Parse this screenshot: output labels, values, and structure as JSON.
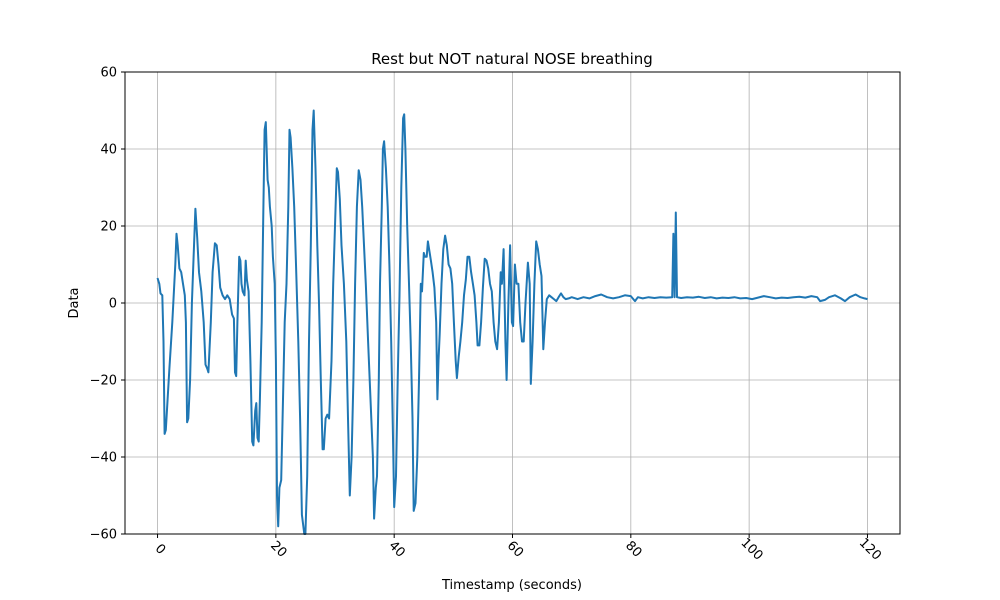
{
  "chart_data": {
    "type": "line",
    "title": "Rest but NOT natural NOSE breathing",
    "xlabel": "Timestamp (seconds)",
    "ylabel": "Data",
    "xlim": [
      -5.5,
      125.5
    ],
    "ylim": [
      -60,
      60
    ],
    "xticks": [
      0,
      20,
      40,
      60,
      80,
      100,
      120
    ],
    "yticks": [
      -60,
      -40,
      -20,
      0,
      20,
      40,
      60
    ],
    "xtick_rotation": 45,
    "grid": true,
    "series": [
      {
        "color": "#1f77b4",
        "points": [
          [
            0,
            6.5
          ],
          [
            0.3,
            5
          ],
          [
            0.5,
            2.5
          ],
          [
            0.8,
            2
          ],
          [
            1.0,
            -10
          ],
          [
            1.2,
            -34
          ],
          [
            1.4,
            -33
          ],
          [
            1.7,
            -25
          ],
          [
            2.0,
            -17
          ],
          [
            2.5,
            -5
          ],
          [
            3.0,
            10
          ],
          [
            3.2,
            18
          ],
          [
            3.4,
            15
          ],
          [
            3.7,
            9
          ],
          [
            4.0,
            8
          ],
          [
            4.3,
            5
          ],
          [
            4.6,
            2
          ],
          [
            4.8,
            -5
          ],
          [
            5.0,
            -31
          ],
          [
            5.2,
            -30
          ],
          [
            5.5,
            -20
          ],
          [
            5.8,
            0
          ],
          [
            6.1,
            12
          ],
          [
            6.4,
            24.5
          ],
          [
            6.7,
            17
          ],
          [
            7.0,
            8
          ],
          [
            7.4,
            3
          ],
          [
            7.8,
            -5
          ],
          [
            8.1,
            -16
          ],
          [
            8.4,
            -17
          ],
          [
            8.6,
            -18
          ],
          [
            9.0,
            -5
          ],
          [
            9.3,
            8
          ],
          [
            9.7,
            15.5
          ],
          [
            10.0,
            15
          ],
          [
            10.3,
            10
          ],
          [
            10.6,
            4
          ],
          [
            11.0,
            2
          ],
          [
            11.4,
            1
          ],
          [
            11.8,
            2
          ],
          [
            12.2,
            1
          ],
          [
            12.6,
            -3
          ],
          [
            12.9,
            -4
          ],
          [
            13.1,
            -18
          ],
          [
            13.3,
            -19
          ],
          [
            13.5,
            -5
          ],
          [
            13.8,
            12
          ],
          [
            14.0,
            11
          ],
          [
            14.2,
            5
          ],
          [
            14.4,
            3
          ],
          [
            14.7,
            2
          ],
          [
            14.9,
            11
          ],
          [
            15.1,
            6
          ],
          [
            15.4,
            3
          ],
          [
            15.7,
            -15
          ],
          [
            16.0,
            -36
          ],
          [
            16.2,
            -37
          ],
          [
            16.5,
            -28
          ],
          [
            16.7,
            -26
          ],
          [
            16.9,
            -35
          ],
          [
            17.1,
            -36
          ],
          [
            17.3,
            -25
          ],
          [
            17.6,
            -5
          ],
          [
            17.9,
            25
          ],
          [
            18.1,
            45
          ],
          [
            18.3,
            47
          ],
          [
            18.6,
            32
          ],
          [
            18.8,
            30
          ],
          [
            19.0,
            25
          ],
          [
            19.3,
            20
          ],
          [
            19.5,
            12
          ],
          [
            19.8,
            5
          ],
          [
            20.0,
            -15
          ],
          [
            20.2,
            -50
          ],
          [
            20.4,
            -58
          ],
          [
            20.6,
            -48
          ],
          [
            20.9,
            -46
          ],
          [
            21.2,
            -25
          ],
          [
            21.5,
            -5
          ],
          [
            21.8,
            5
          ],
          [
            22.1,
            25
          ],
          [
            22.3,
            45
          ],
          [
            22.5,
            43
          ],
          [
            22.8,
            35
          ],
          [
            23.1,
            25
          ],
          [
            23.4,
            10
          ],
          [
            23.8,
            -10
          ],
          [
            24.1,
            -30
          ],
          [
            24.4,
            -55
          ],
          [
            24.8,
            -60
          ],
          [
            25.0,
            -60
          ],
          [
            25.3,
            -45
          ],
          [
            25.6,
            -10
          ],
          [
            25.9,
            15
          ],
          [
            26.2,
            45
          ],
          [
            26.4,
            50
          ],
          [
            26.7,
            35
          ],
          [
            27.0,
            15
          ],
          [
            27.3,
            0
          ],
          [
            27.6,
            -20
          ],
          [
            27.9,
            -38
          ],
          [
            28.1,
            -38
          ],
          [
            28.4,
            -30
          ],
          [
            28.7,
            -29
          ],
          [
            29.0,
            -30
          ],
          [
            29.4,
            -15
          ],
          [
            29.7,
            5
          ],
          [
            30.0,
            20
          ],
          [
            30.3,
            35
          ],
          [
            30.5,
            34
          ],
          [
            30.8,
            27
          ],
          [
            31.1,
            15
          ],
          [
            31.5,
            5
          ],
          [
            31.9,
            -10
          ],
          [
            32.2,
            -30
          ],
          [
            32.5,
            -50
          ],
          [
            32.8,
            -40
          ],
          [
            33.1,
            -20
          ],
          [
            33.4,
            5
          ],
          [
            33.7,
            25
          ],
          [
            34.0,
            34.5
          ],
          [
            34.3,
            32
          ],
          [
            34.6,
            25
          ],
          [
            34.9,
            15
          ],
          [
            35.2,
            5
          ],
          [
            35.6,
            -10
          ],
          [
            36.0,
            -25
          ],
          [
            36.4,
            -40
          ],
          [
            36.6,
            -56
          ],
          [
            36.9,
            -48
          ],
          [
            37.1,
            -45
          ],
          [
            37.4,
            -20
          ],
          [
            37.6,
            5
          ],
          [
            37.9,
            25
          ],
          [
            38.1,
            40
          ],
          [
            38.3,
            42
          ],
          [
            38.6,
            35
          ],
          [
            38.9,
            25
          ],
          [
            39.2,
            10
          ],
          [
            39.5,
            -10
          ],
          [
            39.8,
            -35
          ],
          [
            40.0,
            -53
          ],
          [
            40.3,
            -45
          ],
          [
            40.6,
            -20
          ],
          [
            40.9,
            2
          ],
          [
            41.2,
            30
          ],
          [
            41.5,
            48
          ],
          [
            41.7,
            49
          ],
          [
            41.9,
            40
          ],
          [
            42.2,
            20
          ],
          [
            42.5,
            5
          ],
          [
            42.8,
            -10
          ],
          [
            43.1,
            -30
          ],
          [
            43.3,
            -54
          ],
          [
            43.6,
            -52
          ],
          [
            43.9,
            -40
          ],
          [
            44.2,
            -20
          ],
          [
            44.5,
            5
          ],
          [
            44.7,
            3
          ],
          [
            45.0,
            13
          ],
          [
            45.2,
            12
          ],
          [
            45.5,
            12
          ],
          [
            45.7,
            16
          ],
          [
            45.9,
            14
          ],
          [
            46.2,
            11
          ],
          [
            46.5,
            8
          ],
          [
            46.8,
            4
          ],
          [
            47.1,
            -5
          ],
          [
            47.3,
            -25
          ],
          [
            47.5,
            -15
          ],
          [
            47.7,
            -8
          ],
          [
            48.0,
            5
          ],
          [
            48.3,
            14
          ],
          [
            48.6,
            17.5
          ],
          [
            48.9,
            15
          ],
          [
            49.2,
            10
          ],
          [
            49.5,
            9
          ],
          [
            49.8,
            5
          ],
          [
            50.1,
            -5
          ],
          [
            50.4,
            -15
          ],
          [
            50.6,
            -19.5
          ],
          [
            50.9,
            -14
          ],
          [
            51.2,
            -10
          ],
          [
            51.5,
            -5
          ],
          [
            51.8,
            2
          ],
          [
            52.1,
            6
          ],
          [
            52.4,
            12
          ],
          [
            52.7,
            12
          ],
          [
            53.0,
            8
          ],
          [
            53.3,
            5
          ],
          [
            53.6,
            2
          ],
          [
            53.9,
            -5
          ],
          [
            54.1,
            -11
          ],
          [
            54.4,
            -11
          ],
          [
            54.7,
            -5
          ],
          [
            55.0,
            4
          ],
          [
            55.3,
            11.5
          ],
          [
            55.6,
            11
          ],
          [
            55.9,
            9
          ],
          [
            56.2,
            5
          ],
          [
            56.5,
            3
          ],
          [
            56.8,
            -5
          ],
          [
            57.1,
            -10
          ],
          [
            57.4,
            -12
          ],
          [
            57.7,
            -5
          ],
          [
            58.0,
            8
          ],
          [
            58.2,
            5
          ],
          [
            58.5,
            14
          ],
          [
            58.8,
            -10
          ],
          [
            59.0,
            -20
          ],
          [
            59.3,
            0
          ],
          [
            59.6,
            15
          ],
          [
            59.9,
            -5
          ],
          [
            60.1,
            -6
          ],
          [
            60.4,
            10
          ],
          [
            60.7,
            5
          ],
          [
            61.0,
            5
          ],
          [
            61.3,
            -5
          ],
          [
            61.6,
            -10
          ],
          [
            61.9,
            -10
          ],
          [
            62.2,
            0
          ],
          [
            62.6,
            10.5
          ],
          [
            62.9,
            5
          ],
          [
            63.1,
            -21
          ],
          [
            63.4,
            -10
          ],
          [
            63.7,
            5
          ],
          [
            64.0,
            16
          ],
          [
            64.3,
            14
          ],
          [
            64.6,
            10
          ],
          [
            64.9,
            7
          ],
          [
            65.2,
            -12
          ],
          [
            65.5,
            -5
          ],
          [
            65.8,
            1
          ],
          [
            66.2,
            2
          ],
          [
            66.6,
            1.5
          ],
          [
            67.0,
            1
          ],
          [
            67.4,
            0.5
          ],
          [
            67.8,
            1.5
          ],
          [
            68.2,
            2.5
          ],
          [
            68.6,
            1.5
          ],
          [
            69.0,
            1
          ],
          [
            69.5,
            1.2
          ],
          [
            70,
            1.5
          ],
          [
            71,
            1
          ],
          [
            72,
            1.5
          ],
          [
            73,
            1.2
          ],
          [
            74,
            1.8
          ],
          [
            75,
            2.2
          ],
          [
            76,
            1.5
          ],
          [
            77,
            1.2
          ],
          [
            78,
            1.5
          ],
          [
            79,
            2
          ],
          [
            80,
            1.8
          ],
          [
            80.7,
            0.5
          ],
          [
            81.2,
            1.5
          ],
          [
            82,
            1.2
          ],
          [
            83,
            1.5
          ],
          [
            84,
            1.3
          ],
          [
            85,
            1.5
          ],
          [
            86,
            1.4
          ],
          [
            87,
            1.5
          ],
          [
            87.2,
            18
          ],
          [
            87.4,
            1.5
          ],
          [
            87.6,
            23.5
          ],
          [
            87.8,
            1.5
          ],
          [
            88.5,
            1.3
          ],
          [
            89.5,
            1.5
          ],
          [
            90.5,
            1.4
          ],
          [
            91.5,
            1.6
          ],
          [
            92.5,
            1.3
          ],
          [
            93.5,
            1.5
          ],
          [
            94.5,
            1.2
          ],
          [
            95.5,
            1.4
          ],
          [
            96.5,
            1.3
          ],
          [
            97.5,
            1.5
          ],
          [
            98.5,
            1.2
          ],
          [
            99.5,
            1.3
          ],
          [
            100.5,
            1.0
          ],
          [
            101.5,
            1.4
          ],
          [
            102.5,
            1.8
          ],
          [
            103.5,
            1.5
          ],
          [
            104.5,
            1.2
          ],
          [
            105.5,
            1.4
          ],
          [
            106.5,
            1.3
          ],
          [
            107.5,
            1.5
          ],
          [
            108.5,
            1.6
          ],
          [
            109.5,
            1.4
          ],
          [
            110.5,
            1.8
          ],
          [
            111.5,
            1.5
          ],
          [
            112.0,
            0.5
          ],
          [
            112.8,
            0.8
          ],
          [
            113.5,
            1.5
          ],
          [
            114.5,
            2.0
          ],
          [
            115.5,
            1.2
          ],
          [
            116.2,
            0.5
          ],
          [
            117.0,
            1.5
          ],
          [
            118.0,
            2.2
          ],
          [
            118.8,
            1.5
          ],
          [
            119.5,
            1.2
          ],
          [
            120,
            1.0
          ]
        ]
      }
    ]
  }
}
